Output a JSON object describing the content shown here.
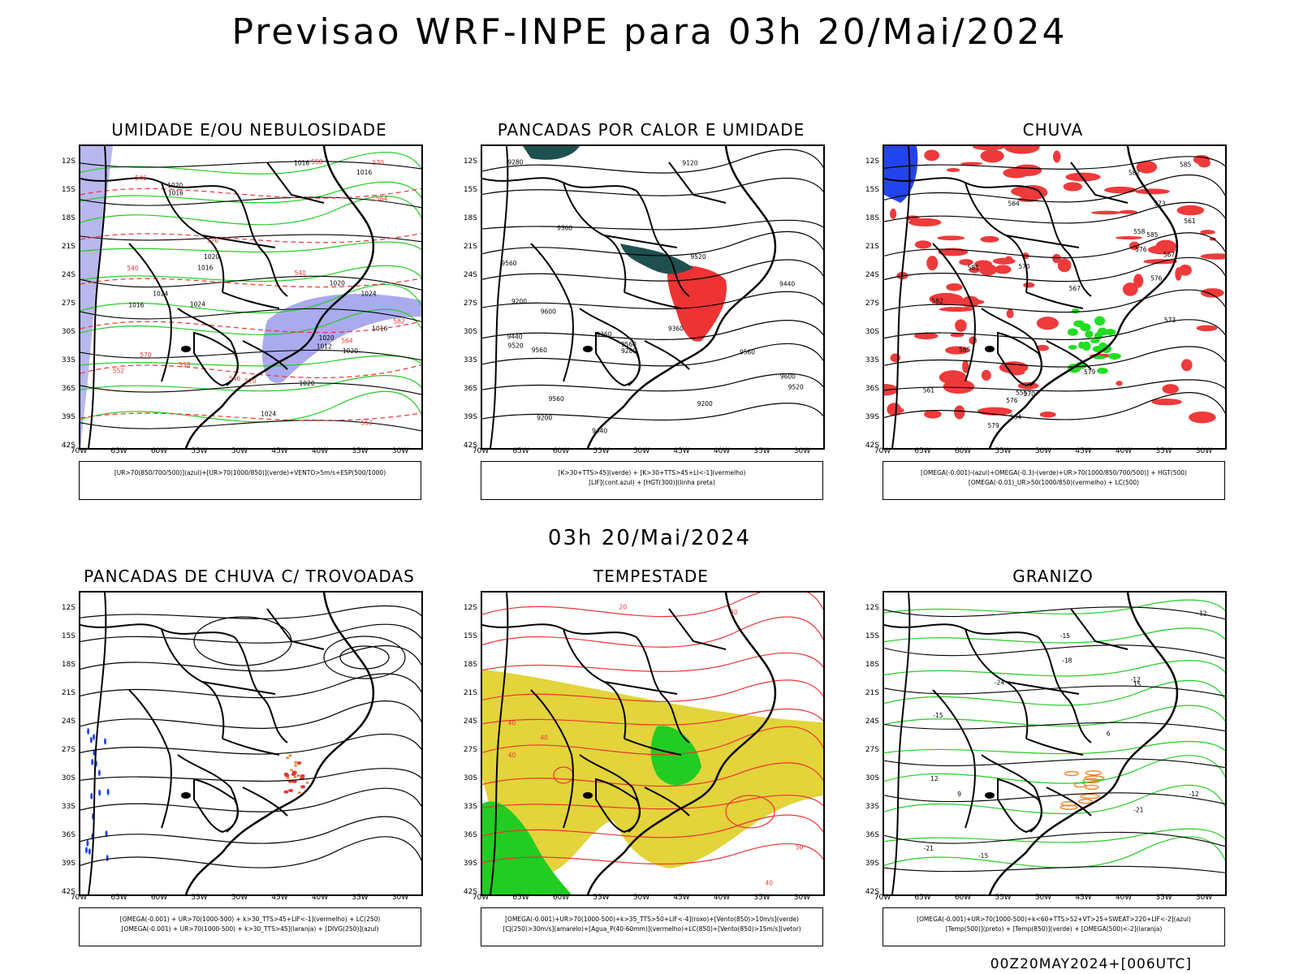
{
  "title": "Previsao WRF-INPE  para 03h 20/Mai/2024",
  "mid_title": "03h 20/Mai/2024",
  "footer": "00Z20MAY2024+[006UTC]",
  "axes": {
    "lat_labels": [
      "12S",
      "15S",
      "18S",
      "21S",
      "24S",
      "27S",
      "30S",
      "33S",
      "36S",
      "39S",
      "42S"
    ],
    "lon_labels": [
      "70W",
      "65W",
      "60W",
      "55W",
      "50W",
      "45W",
      "40W",
      "35W",
      "30W"
    ]
  },
  "panels": [
    {
      "title": "UMIDADE E/OU NEBULOSIDADE",
      "legend": [
        "[UR>70(850/700/500)](azul)+[UR>70(1000/850)](verde)+VENTO>5m/s+ESP(500/1000)"
      ],
      "labels": [
        "1016",
        "1016",
        "1016",
        "1016",
        "1020",
        "1020",
        "1016",
        "1016",
        "1020",
        "1024",
        "1020",
        "1020",
        "1024",
        "1024",
        "1020",
        "1012",
        "1024",
        "570",
        "570",
        "564",
        "558",
        "552",
        "546",
        "564",
        "558",
        "552",
        "546",
        "540",
        "540",
        "582",
        "576",
        "570"
      ]
    },
    {
      "title": "PANCADAS POR CALOR E UMIDADE",
      "legend": [
        "[K>30+TTS>45](verde) + [K>30+TTS>45+LI<-1](vermelho)",
        "[LIF](cont.azul) + [HGT(300)](linha preta)"
      ],
      "labels": [
        "9560",
        "9560",
        "9560",
        "9560",
        "9560",
        "9600",
        "9520",
        "9520",
        "9440",
        "9360",
        "9440",
        "9360",
        "9280",
        "9200",
        "9280",
        "9120",
        "9200",
        "9200",
        "9600",
        "9520",
        "9440",
        "9360"
      ]
    },
    {
      "title": "CHUVA",
      "legend": [
        "[OMEGA(-0.001)-(azul)+OMEGA(-0.3)-(verde)+UR>70(1000/850/700/500)] + HGT(500)",
        "[OMEGA(-0.01)_UR>50(1000/850)(vermelho) + LC(500)"
      ],
      "labels": [
        "585",
        "585",
        "585",
        "582",
        "579",
        "576",
        "576",
        "573",
        "570",
        "567",
        "564",
        "561",
        "558",
        "555",
        "585",
        "582",
        "579",
        "576",
        "573",
        "570",
        "567",
        "564",
        "561"
      ]
    },
    {
      "title": "PANCADAS DE CHUVA C/ TROVOADAS",
      "legend": [
        "[OMEGA(-0.001) + UR>70(1000-500) + k>30_TTS>45+LIF<-1](vermelho) + LC(250)",
        "[OMEGA(-0.001) + UR>70(1000-500) + k>30_TTS>45](laranja) + [DIVG(250)](azul)"
      ],
      "labels": []
    },
    {
      "title": "TEMPESTADE",
      "legend": [
        "[OMEGA(-0.001)+UR>70(1000-500)+k>35_TTS>50+LIF<-4](roxo)+[Vento(850)>10m/s](verde)",
        "[CJ(250)>30m/s](amarelo)+[Agua_P(40-60mm)](vermelho)+LC(850)+[Vento(850)>15m/s](vetor)"
      ],
      "labels": [
        "20",
        "30",
        "40",
        "40",
        "40",
        "50",
        "40"
      ]
    },
    {
      "title": "GRANIZO",
      "legend": [
        "[OMEGA(-0.001)+UR>70(1000-500)+k<60+TTS>52+VT>25+SWEAT>220+LIF<-2](azul)",
        "[Temp(500)](preto) + [Temp(850)](verde) + [OMEGA(500)<-2](laranja)"
      ],
      "labels": [
        "-12",
        "-12",
        "-12",
        "-15",
        "-15",
        "-15",
        "-18",
        "-21",
        "-21",
        "-24",
        "15",
        "12",
        "9",
        "6"
      ]
    }
  ]
}
